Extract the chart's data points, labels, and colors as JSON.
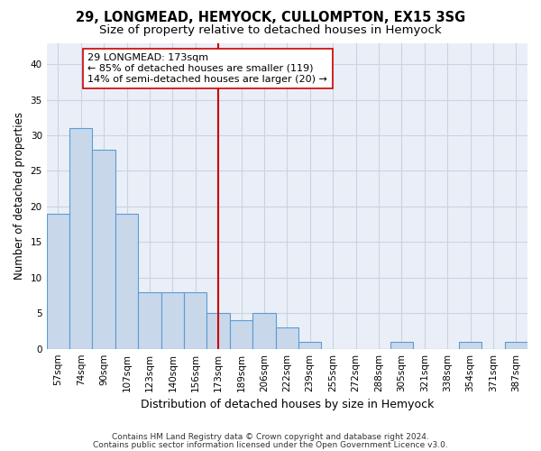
{
  "title1": "29, LONGMEAD, HEMYOCK, CULLOMPTON, EX15 3SG",
  "title2": "Size of property relative to detached houses in Hemyock",
  "xlabel": "Distribution of detached houses by size in Hemyock",
  "ylabel": "Number of detached properties",
  "categories": [
    "57sqm",
    "74sqm",
    "90sqm",
    "107sqm",
    "123sqm",
    "140sqm",
    "156sqm",
    "173sqm",
    "189sqm",
    "206sqm",
    "222sqm",
    "239sqm",
    "255sqm",
    "272sqm",
    "288sqm",
    "305sqm",
    "321sqm",
    "338sqm",
    "354sqm",
    "371sqm",
    "387sqm"
  ],
  "values": [
    19,
    31,
    28,
    19,
    8,
    8,
    8,
    5,
    4,
    5,
    3,
    1,
    0,
    0,
    0,
    1,
    0,
    0,
    1,
    0,
    1
  ],
  "bar_color": "#c8d8ea",
  "bar_edge_color": "#5b9bd5",
  "bar_edge_width": 0.8,
  "vline_x": 7,
  "vline_color": "#cc0000",
  "annotation_line1": "29 LONGMEAD: 173sqm",
  "annotation_line2": "← 85% of detached houses are smaller (119)",
  "annotation_line3": "14% of semi-detached houses are larger (20) →",
  "annotation_box_edge": "#cc0000",
  "ylim": [
    0,
    43
  ],
  "yticks": [
    0,
    5,
    10,
    15,
    20,
    25,
    30,
    35,
    40
  ],
  "grid_color": "#c8d4e4",
  "background_color": "#eaeff7",
  "footer1": "Contains HM Land Registry data © Crown copyright and database right 2024.",
  "footer2": "Contains public sector information licensed under the Open Government Licence v3.0.",
  "title_fontsize": 10.5,
  "subtitle_fontsize": 9.5,
  "xlabel_fontsize": 9,
  "ylabel_fontsize": 8.5,
  "tick_fontsize": 7.5,
  "annotation_fontsize": 8
}
